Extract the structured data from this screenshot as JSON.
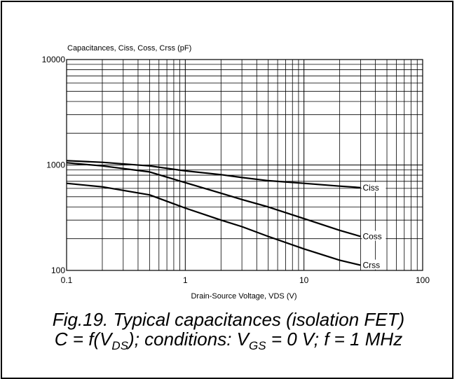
{
  "chart_data": {
    "type": "line",
    "title": "",
    "ylabel": "Capacitances, Ciss, Coss, Crss (pF)",
    "xlabel": "Drain-Source Voltage, VDS (V)",
    "x_scale": "log",
    "y_scale": "log",
    "xlim": [
      0.1,
      100
    ],
    "ylim": [
      100,
      10000
    ],
    "x_ticks": [
      "0.1",
      "1",
      "10",
      "100"
    ],
    "y_ticks": [
      "10000",
      "1000",
      "100"
    ],
    "grid": true,
    "series": [
      {
        "name": "Ciss",
        "points": [
          [
            0.1,
            1100
          ],
          [
            0.2,
            1060
          ],
          [
            0.5,
            980
          ],
          [
            1,
            880
          ],
          [
            2,
            810
          ],
          [
            3,
            760
          ],
          [
            5,
            710
          ],
          [
            10,
            670
          ],
          [
            20,
            630
          ],
          [
            30,
            610
          ]
        ]
      },
      {
        "name": "Coss",
        "points": [
          [
            0.1,
            1050
          ],
          [
            0.2,
            980
          ],
          [
            0.5,
            860
          ],
          [
            1,
            680
          ],
          [
            2,
            540
          ],
          [
            3,
            470
          ],
          [
            5,
            400
          ],
          [
            10,
            310
          ],
          [
            20,
            240
          ],
          [
            30,
            210
          ]
        ]
      },
      {
        "name": "Crss",
        "points": [
          [
            0.1,
            670
          ],
          [
            0.2,
            620
          ],
          [
            0.5,
            520
          ],
          [
            1,
            390
          ],
          [
            2,
            300
          ],
          [
            3,
            260
          ],
          [
            5,
            210
          ],
          [
            10,
            160
          ],
          [
            20,
            125
          ],
          [
            30,
            112
          ]
        ]
      }
    ]
  },
  "caption": {
    "line1": "Fig.19.   Typical capacitances (isolation FET)",
    "line2_parts": [
      {
        "t": "C = f(V",
        "sub": false
      },
      {
        "t": "DS",
        "sub": true
      },
      {
        "t": "); conditions: V",
        "sub": false
      },
      {
        "t": "GS",
        "sub": true
      },
      {
        "t": " = 0 V; f = 1 MHz",
        "sub": false
      }
    ]
  }
}
